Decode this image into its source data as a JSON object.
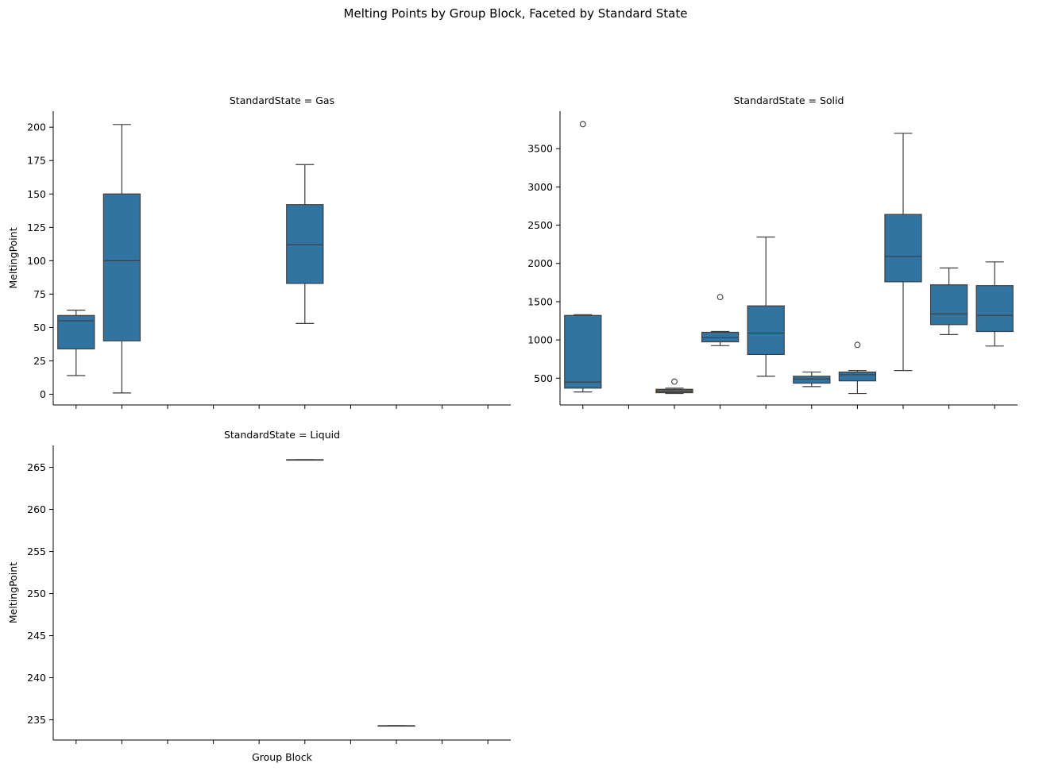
{
  "chart_data": {
    "type": "box",
    "title": "Melting Points by Group Block, Faceted by Standard State",
    "xlabel": "Group Block",
    "ylabel": "MeltingPoint",
    "category_count": 10,
    "box_color": "#3274a1",
    "line_color": "#3d3d3d",
    "facets": [
      {
        "title": "StandardState = Gas",
        "ylim": [
          -8,
          212
        ],
        "yticks": [
          0,
          25,
          50,
          75,
          100,
          125,
          150,
          175,
          200
        ],
        "show_ylabel": true,
        "show_xlabel": false,
        "boxes": [
          {
            "index": 0,
            "whisker_low": 14,
            "q1": 34,
            "median": 55,
            "q3": 59,
            "whisker_high": 63,
            "outliers": []
          },
          {
            "index": 1,
            "whisker_low": 1,
            "q1": 40,
            "median": 100,
            "q3": 150,
            "whisker_high": 202,
            "outliers": []
          },
          {
            "index": 5,
            "whisker_low": 53,
            "q1": 83,
            "median": 112,
            "q3": 142,
            "whisker_high": 172,
            "outliers": []
          }
        ]
      },
      {
        "title": "StandardState = Solid",
        "ylim": [
          150,
          3990
        ],
        "yticks": [
          500,
          1000,
          1500,
          2000,
          2500,
          3000,
          3500
        ],
        "show_ylabel": false,
        "show_xlabel": false,
        "boxes": [
          {
            "index": 0,
            "whisker_low": 320,
            "q1": 370,
            "median": 450,
            "q3": 1320,
            "whisker_high": 1330,
            "outliers": [
              3820
            ]
          },
          {
            "index": 2,
            "whisker_low": 300,
            "q1": 310,
            "median": 330,
            "q3": 355,
            "whisker_high": 370,
            "outliers": [
              455
            ]
          },
          {
            "index": 3,
            "whisker_low": 925,
            "q1": 975,
            "median": 1030,
            "q3": 1100,
            "whisker_high": 1110,
            "outliers": [
              1560
            ]
          },
          {
            "index": 4,
            "whisker_low": 525,
            "q1": 810,
            "median": 1090,
            "q3": 1445,
            "whisker_high": 2345,
            "outliers": []
          },
          {
            "index": 5,
            "whisker_low": 390,
            "q1": 435,
            "median": 490,
            "q3": 525,
            "whisker_high": 580,
            "outliers": []
          },
          {
            "index": 6,
            "whisker_low": 300,
            "q1": 465,
            "median": 545,
            "q3": 580,
            "whisker_high": 600,
            "outliers": [
              935
            ]
          },
          {
            "index": 7,
            "whisker_low": 600,
            "q1": 1760,
            "median": 2090,
            "q3": 2640,
            "whisker_high": 3700,
            "outliers": []
          },
          {
            "index": 8,
            "whisker_low": 1070,
            "q1": 1200,
            "median": 1340,
            "q3": 1720,
            "whisker_high": 1940,
            "outliers": []
          },
          {
            "index": 9,
            "whisker_low": 920,
            "q1": 1110,
            "median": 1320,
            "q3": 1710,
            "whisker_high": 2020,
            "outliers": []
          }
        ]
      },
      {
        "title": "StandardState = Liquid",
        "ylim": [
          232.6,
          267.6
        ],
        "yticks": [
          235,
          240,
          245,
          250,
          255,
          260,
          265
        ],
        "show_ylabel": true,
        "show_xlabel": true,
        "boxes": [
          {
            "index": 5,
            "whisker_low": 265.9,
            "q1": 265.9,
            "median": 265.9,
            "q3": 265.9,
            "whisker_high": 265.9,
            "outliers": []
          },
          {
            "index": 7,
            "whisker_low": 234.3,
            "q1": 234.3,
            "median": 234.3,
            "q3": 234.3,
            "whisker_high": 234.3,
            "outliers": []
          }
        ]
      }
    ]
  }
}
